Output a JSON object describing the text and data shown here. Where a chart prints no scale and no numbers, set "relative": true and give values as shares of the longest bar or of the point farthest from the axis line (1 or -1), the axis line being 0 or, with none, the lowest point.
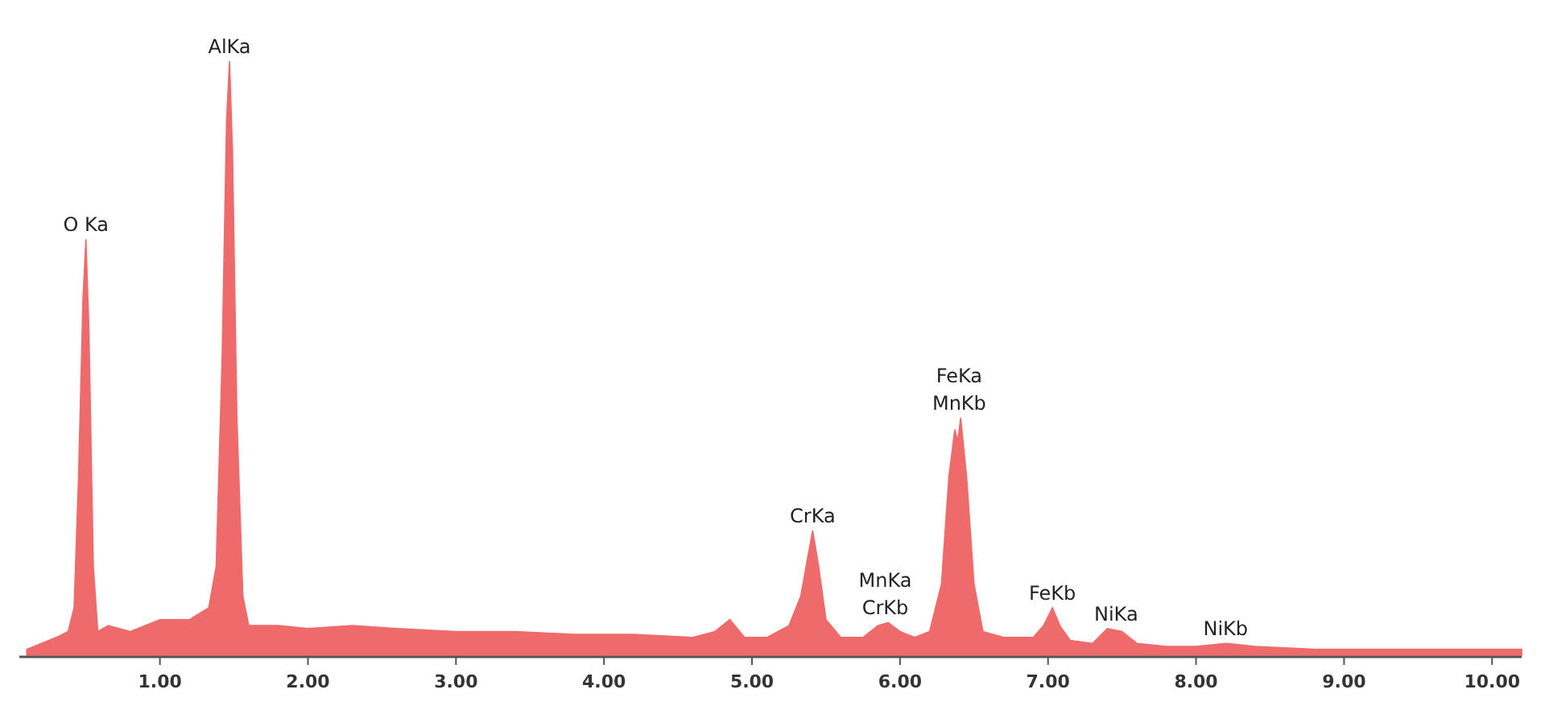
{
  "chart_data": {
    "type": "area",
    "relative": true,
    "color": "#ef6b6b",
    "x": [
      0.1,
      0.2,
      0.3,
      0.38,
      0.42,
      0.45,
      0.48,
      0.5,
      0.52,
      0.55,
      0.58,
      0.65,
      0.8,
      1.0,
      1.2,
      1.33,
      1.38,
      1.42,
      1.45,
      1.47,
      1.49,
      1.52,
      1.56,
      1.6,
      1.8,
      2.0,
      2.3,
      2.6,
      3.0,
      3.4,
      3.8,
      4.2,
      4.6,
      4.75,
      4.85,
      4.95,
      5.1,
      5.25,
      5.33,
      5.38,
      5.41,
      5.45,
      5.5,
      5.6,
      5.75,
      5.85,
      5.92,
      6.0,
      6.1,
      6.2,
      6.28,
      6.33,
      6.37,
      6.39,
      6.41,
      6.45,
      6.5,
      6.56,
      6.7,
      6.9,
      6.97,
      7.03,
      7.08,
      7.15,
      7.3,
      7.4,
      7.5,
      7.6,
      7.8,
      8.0,
      8.2,
      8.4,
      8.8,
      9.2,
      9.6,
      10.0,
      10.2
    ],
    "values": [
      0.01,
      0.02,
      0.03,
      0.04,
      0.08,
      0.3,
      0.6,
      0.7,
      0.55,
      0.15,
      0.04,
      0.05,
      0.04,
      0.06,
      0.06,
      0.08,
      0.15,
      0.5,
      0.9,
      1,
      0.85,
      0.4,
      0.1,
      0.05,
      0.05,
      0.045,
      0.05,
      0.045,
      0.04,
      0.04,
      0.035,
      0.035,
      0.03,
      0.04,
      0.06,
      0.03,
      0.03,
      0.05,
      0.1,
      0.17,
      0.21,
      0.15,
      0.06,
      0.03,
      0.03,
      0.05,
      0.055,
      0.04,
      0.03,
      0.04,
      0.12,
      0.3,
      0.38,
      0.36,
      0.4,
      0.3,
      0.12,
      0.04,
      0.03,
      0.03,
      0.05,
      0.08,
      0.05,
      0.025,
      0.02,
      0.045,
      0.04,
      0.02,
      0.015,
      0.015,
      0.02,
      0.015,
      0.01,
      0.01,
      0.01,
      0.01,
      0.01
    ],
    "xlim": [
      0.05,
      10.2
    ],
    "xticks": [
      {
        "value": 1,
        "label": "1.00"
      },
      {
        "value": 2,
        "label": "2.00"
      },
      {
        "value": 3,
        "label": "3.00"
      },
      {
        "value": 4,
        "label": "4.00"
      },
      {
        "value": 5,
        "label": "5.00"
      },
      {
        "value": 6,
        "label": "6.00"
      },
      {
        "value": 7,
        "label": "7.00"
      },
      {
        "value": 8,
        "label": "8.00"
      },
      {
        "value": 9,
        "label": "9.00"
      },
      {
        "value": 10,
        "label": "10.00"
      }
    ],
    "annotations": [
      {
        "text": "O Ka",
        "x": 0.5,
        "y": 0.7
      },
      {
        "text": "AlKa",
        "x": 1.47,
        "y": 1
      },
      {
        "text": "CrKa",
        "x": 5.41,
        "y": 0.21
      },
      {
        "text": "MnKa",
        "x": 5.9,
        "y": 0.055
      },
      {
        "text": "CrKb",
        "x": 5.9,
        "y": 0.055
      },
      {
        "text": "FeKa",
        "x": 6.4,
        "y": 0.4
      },
      {
        "text": "MnKb",
        "x": 6.4,
        "y": 0.4
      },
      {
        "text": "FeKb",
        "x": 7.03,
        "y": 0.08
      },
      {
        "text": "NiKa",
        "x": 7.46,
        "y": 0.045
      },
      {
        "text": "NiKb",
        "x": 8.2,
        "y": 0.02
      }
    ]
  }
}
